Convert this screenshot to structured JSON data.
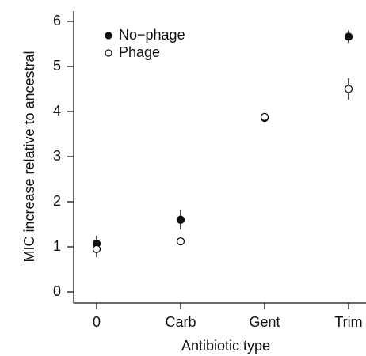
{
  "chart_data": {
    "type": "dot_errorbar",
    "xlabel": "Antibiotic type",
    "ylabel": "MIC increase relative to ancestral",
    "categories": [
      "0",
      "Carb",
      "Gent",
      "Trim"
    ],
    "series": [
      {
        "name": "No−phage",
        "color": "#111111",
        "filled": true,
        "values": [
          1.07,
          1.6,
          3.86,
          5.66
        ],
        "errors": [
          0.18,
          0.22,
          0.04,
          0.14
        ]
      },
      {
        "name": "Phage",
        "color": "#111111",
        "filled": false,
        "values": [
          0.95,
          1.12,
          3.88,
          4.5
        ],
        "errors": [
          0.18,
          0.03,
          0.05,
          0.24
        ]
      }
    ],
    "ylim": [
      0,
      6
    ],
    "yticks": [
      0,
      1,
      2,
      3,
      4,
      5,
      6
    ],
    "legend": "upper left"
  }
}
